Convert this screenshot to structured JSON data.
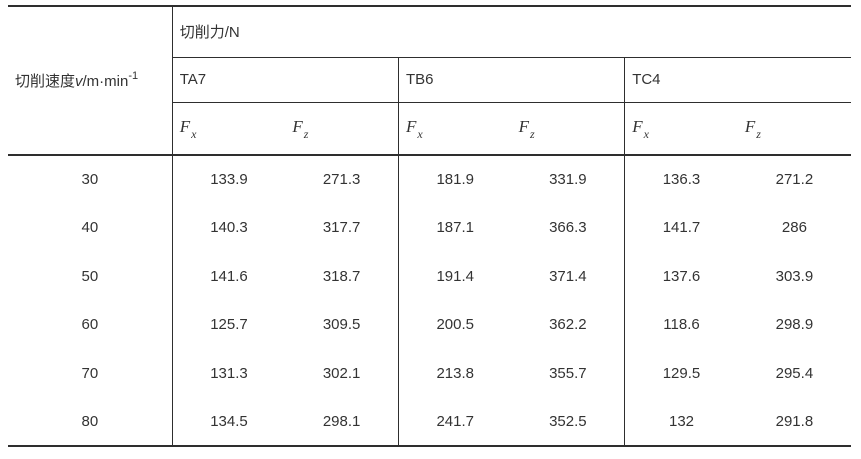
{
  "table": {
    "speed_header": {
      "prefix": "切削速度",
      "symbol": "v",
      "unit": "/m·min",
      "exponent": "-1"
    },
    "force_header": "切削力/N",
    "materials": [
      "TA7",
      "TB6",
      "TC4"
    ],
    "force_components": [
      {
        "base": "F",
        "sub": "x"
      },
      {
        "base": "F",
        "sub": "z"
      }
    ],
    "rows": [
      {
        "speed": "30",
        "values": [
          "133.9",
          "271.3",
          "181.9",
          "331.9",
          "136.3",
          "271.2"
        ]
      },
      {
        "speed": "40",
        "values": [
          "140.3",
          "317.7",
          "187.1",
          "366.3",
          "141.7",
          "286"
        ]
      },
      {
        "speed": "50",
        "values": [
          "141.6",
          "318.7",
          "191.4",
          "371.4",
          "137.6",
          "303.9"
        ]
      },
      {
        "speed": "60",
        "values": [
          "125.7",
          "309.5",
          "200.5",
          "362.2",
          "118.6",
          "298.9"
        ]
      },
      {
        "speed": "70",
        "values": [
          "131.3",
          "302.1",
          "213.8",
          "355.7",
          "129.5",
          "295.4"
        ]
      },
      {
        "speed": "80",
        "values": [
          "134.5",
          "298.1",
          "241.7",
          "352.5",
          "132",
          "291.8"
        ]
      }
    ]
  },
  "colors": {
    "line": "#2e2e2e",
    "text": "#333333",
    "background": "#ffffff"
  },
  "chart_data": {
    "type": "table",
    "row_header": "切削速度v/m·min⁻¹",
    "column_group_header": "切削力/N",
    "materials": [
      "TA7",
      "TB6",
      "TC4"
    ],
    "subcolumns": [
      "Fx",
      "Fz"
    ],
    "speeds": [
      30,
      40,
      50,
      60,
      70,
      80
    ],
    "series": [
      {
        "name": "TA7 Fx",
        "values": [
          133.9,
          140.3,
          141.6,
          125.7,
          131.3,
          134.5
        ]
      },
      {
        "name": "TA7 Fz",
        "values": [
          271.3,
          317.7,
          318.7,
          309.5,
          302.1,
          298.1
        ]
      },
      {
        "name": "TB6 Fx",
        "values": [
          181.9,
          187.1,
          191.4,
          200.5,
          213.8,
          241.7
        ]
      },
      {
        "name": "TB6 Fz",
        "values": [
          331.9,
          366.3,
          371.4,
          362.2,
          355.7,
          352.5
        ]
      },
      {
        "name": "TC4 Fx",
        "values": [
          136.3,
          141.7,
          137.6,
          118.6,
          129.5,
          132
        ]
      },
      {
        "name": "TC4 Fz",
        "values": [
          271.2,
          286,
          303.9,
          298.9,
          295.4,
          291.8
        ]
      }
    ]
  }
}
